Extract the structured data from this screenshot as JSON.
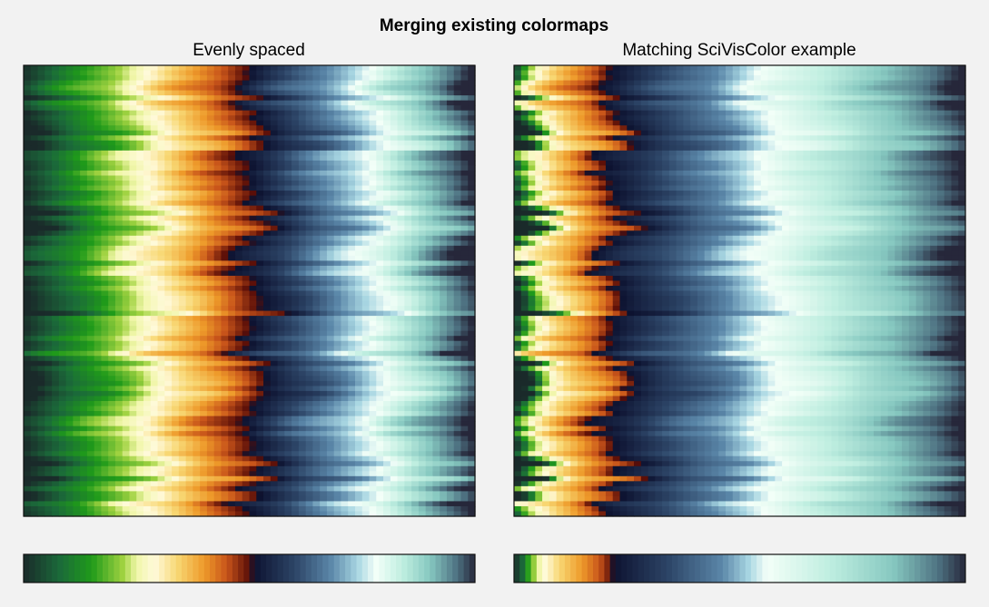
{
  "figure": {
    "suptitle": "Merging existing colormaps"
  },
  "chart_data": [
    {
      "type": "heatmap",
      "title": "Evenly spaced",
      "xlabel": "",
      "ylabel": "",
      "ticks": false,
      "grid": false,
      "colorbar": "bottom",
      "colormap": "merged (green-yellow-orange-dark red, navy-blue-cyan-teal) evenly spaced",
      "colormap_stops": [
        {
          "pos": 0.0,
          "color": "#1a2a2a"
        },
        {
          "pos": 0.08,
          "color": "#1b6a3a"
        },
        {
          "pos": 0.15,
          "color": "#1f9a1a"
        },
        {
          "pos": 0.22,
          "color": "#9fd240"
        },
        {
          "pos": 0.25,
          "color": "#f0f6a8"
        },
        {
          "pos": 0.29,
          "color": "#fffadb"
        },
        {
          "pos": 0.34,
          "color": "#f8d874"
        },
        {
          "pos": 0.4,
          "color": "#ee9a2a"
        },
        {
          "pos": 0.45,
          "color": "#c8541a"
        },
        {
          "pos": 0.5,
          "color": "#5a0e08"
        },
        {
          "pos": 0.51,
          "color": "#0d1230"
        },
        {
          "pos": 0.6,
          "color": "#2c4466"
        },
        {
          "pos": 0.68,
          "color": "#5a86a8"
        },
        {
          "pos": 0.74,
          "color": "#a8d6e2"
        },
        {
          "pos": 0.78,
          "color": "#f3fff8"
        },
        {
          "pos": 0.84,
          "color": "#bfeee0"
        },
        {
          "pos": 0.9,
          "color": "#86c8c0"
        },
        {
          "pos": 0.96,
          "color": "#4e7282"
        },
        {
          "pos": 1.0,
          "color": "#26273a"
        }
      ]
    },
    {
      "type": "heatmap",
      "title": "Matching SciVisColor example",
      "xlabel": "",
      "ylabel": "",
      "ticks": false,
      "grid": false,
      "colorbar": "bottom",
      "colormap": "merged (green-yellow-orange-dark red, navy-blue-cyan-teal) SciVisColor proportions",
      "colormap_stops": [
        {
          "pos": 0.0,
          "color": "#1a2a2a"
        },
        {
          "pos": 0.02,
          "color": "#1b6a3a"
        },
        {
          "pos": 0.03,
          "color": "#1f9a1a"
        },
        {
          "pos": 0.045,
          "color": "#9fd240"
        },
        {
          "pos": 0.055,
          "color": "#f0f6a8"
        },
        {
          "pos": 0.07,
          "color": "#fffadb"
        },
        {
          "pos": 0.1,
          "color": "#f8d874"
        },
        {
          "pos": 0.15,
          "color": "#ee9a2a"
        },
        {
          "pos": 0.19,
          "color": "#c8541a"
        },
        {
          "pos": 0.215,
          "color": "#5a0e08"
        },
        {
          "pos": 0.22,
          "color": "#0d1230"
        },
        {
          "pos": 0.34,
          "color": "#2c4466"
        },
        {
          "pos": 0.46,
          "color": "#5a86a8"
        },
        {
          "pos": 0.52,
          "color": "#a8d6e2"
        },
        {
          "pos": 0.56,
          "color": "#f3fff8"
        },
        {
          "pos": 0.7,
          "color": "#bfeee0"
        },
        {
          "pos": 0.84,
          "color": "#86c8c0"
        },
        {
          "pos": 0.94,
          "color": "#4e7282"
        },
        {
          "pos": 1.0,
          "color": "#26273a"
        }
      ]
    }
  ]
}
